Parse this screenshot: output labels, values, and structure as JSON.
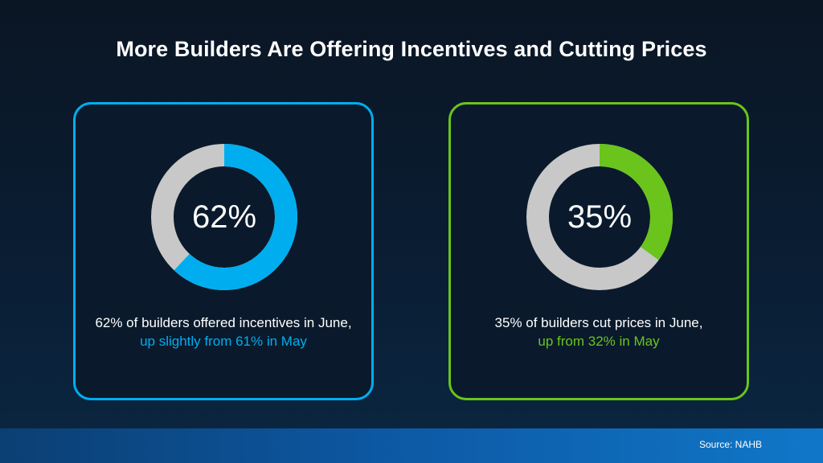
{
  "title": "More Builders Are Offering Incentives and Cutting Prices",
  "chart_data": [
    {
      "type": "pie",
      "value": 62,
      "remainder": 38,
      "label": "62%",
      "caption_main": "62% of builders offered incentives in June,",
      "caption_highlight": "up slightly from 61% in May",
      "accent_color": "#00aeef",
      "track_color": "#c8c8c8"
    },
    {
      "type": "pie",
      "value": 35,
      "remainder": 65,
      "label": "35%",
      "caption_main": "35% of builders cut prices in June,",
      "caption_highlight": "up from 32% in May",
      "accent_color": "#6ac41c",
      "track_color": "#c8c8c8"
    }
  ],
  "footer": {
    "source": "Source: NAHB"
  }
}
